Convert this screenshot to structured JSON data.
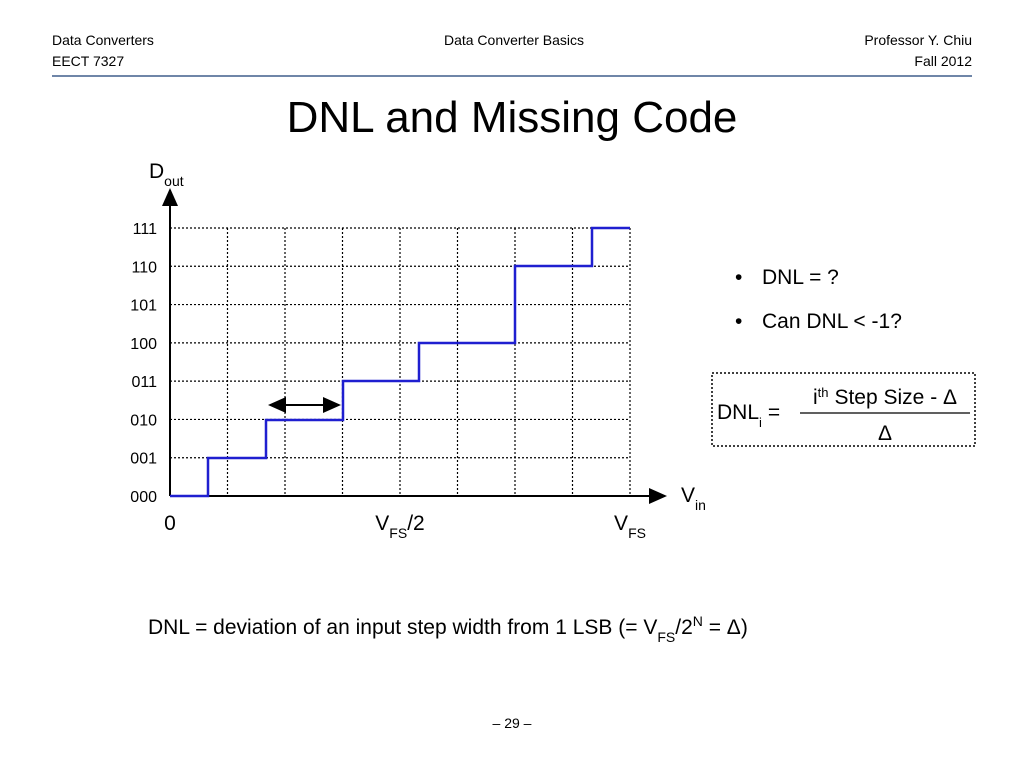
{
  "header": {
    "left": [
      "Data Converters",
      "EECT 7327"
    ],
    "center": "Data Converter Basics",
    "right": [
      "Professor Y. Chiu",
      "Fall 2012"
    ]
  },
  "title": "DNL and Missing Code",
  "diagram": {
    "y_axis": {
      "label": "D",
      "label_sub": "out",
      "codes": [
        "111",
        "110",
        "101",
        "100",
        "011",
        "010",
        "001",
        "000"
      ]
    },
    "x_axis": {
      "label": "V",
      "label_sub": "in",
      "origin": "0",
      "mid": {
        "text": "V",
        "sub": "FS",
        "suffix": "/2"
      },
      "end": {
        "text": "V",
        "sub": "FS"
      }
    }
  },
  "bullets": [
    "DNL = ?",
    "Can DNL < -1?"
  ],
  "formula": {
    "lhs": "DNL",
    "lhs_sub": "i",
    "eq": "=",
    "num_i": "i",
    "num_sup": "th",
    "num_rest": "Step Size - Δ",
    "den": "Δ"
  },
  "footnote": {
    "text": "DNL = deviation of an input step width from 1 LSB (= V",
    "sub": "FS",
    "mid": "/2",
    "sup": "N",
    "end": " = Δ)"
  },
  "page_number": "– 29 –"
}
